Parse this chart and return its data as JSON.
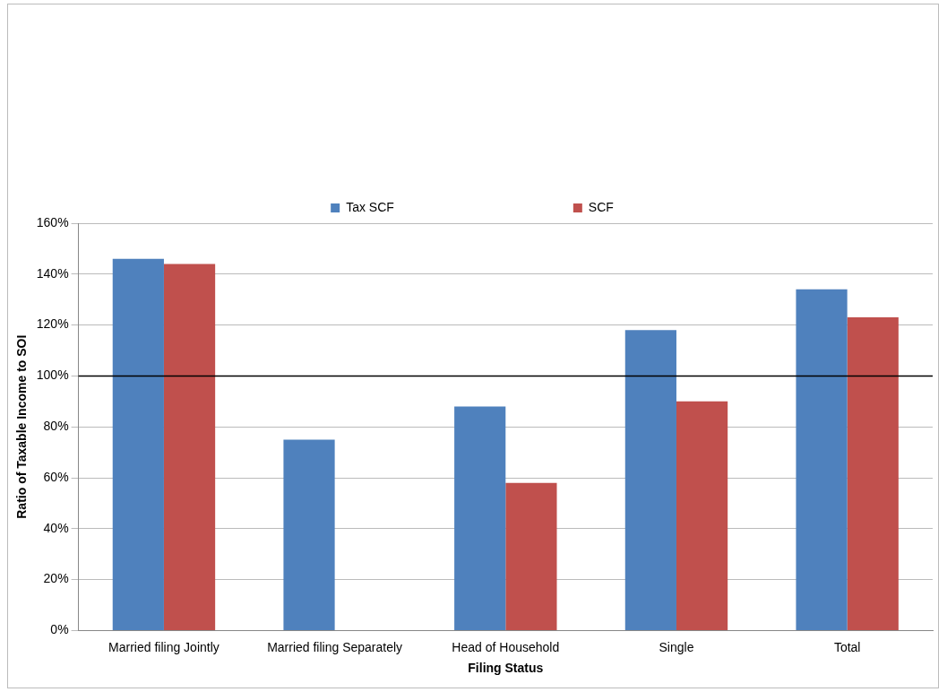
{
  "chart_data": {
    "type": "bar",
    "xlabel": "Filing Status",
    "ylabel": "Ratio of Taxable Income to SOI",
    "categories": [
      "Married filing Jointly",
      "Married filing Separately",
      "Head of Household",
      "Single",
      "Total"
    ],
    "series": [
      {
        "name": "Tax SCF",
        "color": "#4f81bd",
        "values": [
          146,
          75,
          88,
          118,
          134
        ]
      },
      {
        "name": "SCF",
        "color": "#c0504d",
        "values": [
          144,
          null,
          58,
          90,
          123
        ]
      }
    ],
    "ylim": [
      0,
      160
    ],
    "yticks": [
      {
        "value": 0,
        "label": "0%"
      },
      {
        "value": 20,
        "label": "20%"
      },
      {
        "value": 40,
        "label": "40%"
      },
      {
        "value": 60,
        "label": "60%"
      },
      {
        "value": 80,
        "label": "80%"
      },
      {
        "value": 100,
        "label": "100%"
      },
      {
        "value": 120,
        "label": "120%"
      },
      {
        "value": 140,
        "label": "140%"
      },
      {
        "value": 160,
        "label": "160%"
      }
    ],
    "grid": "y",
    "legend": "top",
    "ref_lines": [
      {
        "axis": "y",
        "value": 100,
        "color": "#000000"
      }
    ]
  }
}
